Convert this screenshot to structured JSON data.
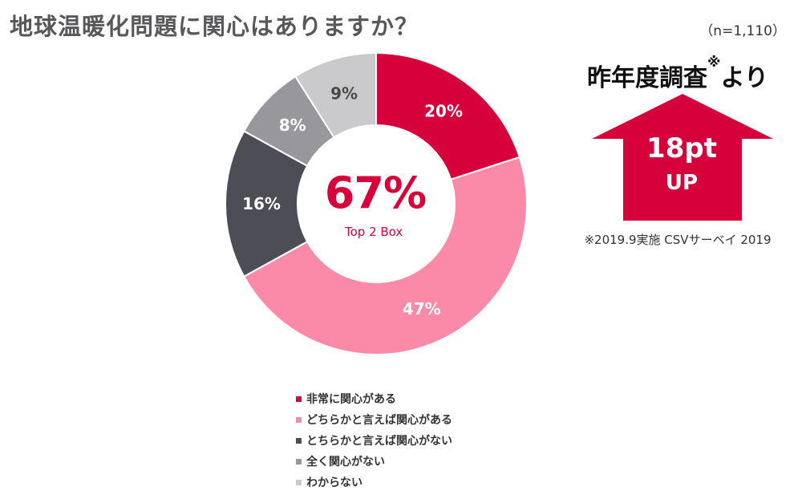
{
  "title": "地球温暖化問題に関心はありますか？",
  "sample_size": "（n=1,110）",
  "center": {
    "value": "67%",
    "label": "Top 2 Box"
  },
  "comparison": {
    "heading": "昨年度調査",
    "heading_mark": "※",
    "heading_suffix": "より",
    "value": "18pt",
    "unit": "UP",
    "footnote": "※2019.9実施 CSVサーベイ 2019",
    "arrow_color": "#d6003a"
  },
  "chart_data": {
    "type": "pie",
    "donut": true,
    "start_angle_deg": 0,
    "direction": "clockwise",
    "title": "地球温暖化問題に関心はありますか？",
    "legend_position": "bottom",
    "slices": [
      {
        "name": "非常に関心がある",
        "value": 20,
        "label": "20%",
        "color": "#d6003a",
        "label_color": "#ffffff"
      },
      {
        "name": "どちらかと言えば関心がある",
        "value": 47,
        "label": "47%",
        "color": "#fa8aa8",
        "label_color": "#ffffff"
      },
      {
        "name": "とちらかと言えば関心がない",
        "value": 16,
        "label": "16%",
        "color": "#4d4d56",
        "label_color": "#ffffff"
      },
      {
        "name": "全く関心がない",
        "value": 8,
        "label": "8%",
        "color": "#97979c",
        "label_color": "#ffffff"
      },
      {
        "name": "わからない",
        "value": 9,
        "label": "9%",
        "color": "#cacacd",
        "label_color": "#4a4a4a"
      }
    ]
  }
}
